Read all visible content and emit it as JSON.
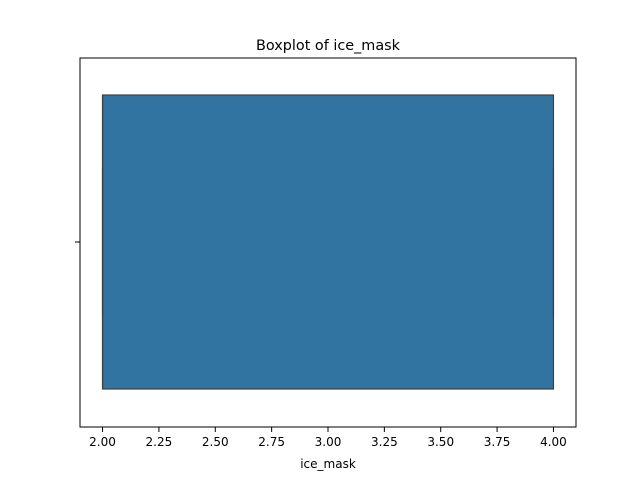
{
  "chart_data": {
    "type": "boxplot",
    "title": "Boxplot of ice_mask",
    "xlabel": "ice_mask",
    "ylabel": "",
    "xlim": [
      1.9,
      4.1
    ],
    "x_ticks": [
      "2.00",
      "2.25",
      "2.50",
      "2.75",
      "3.00",
      "3.25",
      "3.50",
      "3.75",
      "4.00"
    ],
    "x_tick_values": [
      2.0,
      2.25,
      2.5,
      2.75,
      3.0,
      3.25,
      3.5,
      3.75,
      4.0
    ],
    "orientation": "horizontal",
    "grid": false,
    "box": {
      "whisker_low": 2.0,
      "q1": 2.0,
      "median": 2.0,
      "q3": 4.0,
      "whisker_high": 4.0
    },
    "colors": {
      "box_fill": "#3274a1",
      "box_edge": "#3f3f3f"
    }
  }
}
